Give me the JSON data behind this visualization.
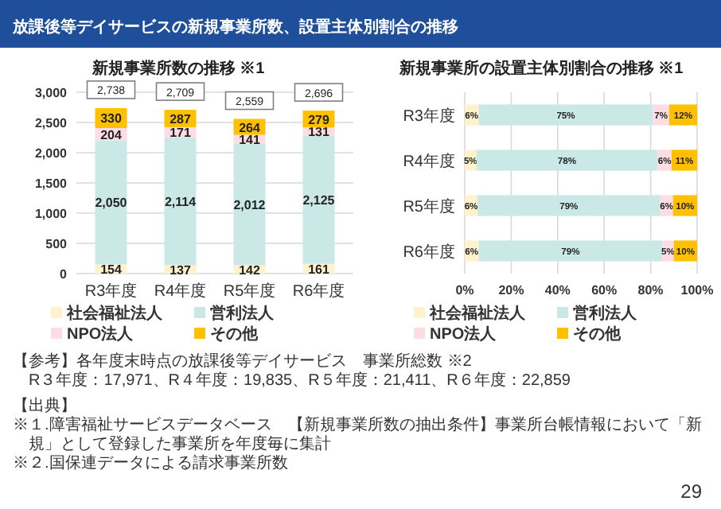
{
  "chart_data": [
    {
      "type": "bar",
      "stacked": true,
      "title": "新規事業所数の推移 ※1",
      "categories": [
        "R3年度",
        "R4年度",
        "R5年度",
        "R6年度"
      ],
      "series": [
        {
          "name": "社会福祉法人",
          "color": "#fff2cc",
          "values": [
            154,
            137,
            142,
            161
          ],
          "value_labels": [
            "154",
            "137",
            "142",
            "161"
          ]
        },
        {
          "name": "営利法人",
          "color": "#c9e8e6",
          "values": [
            2050,
            2114,
            2012,
            2125
          ],
          "value_labels": [
            "2,050",
            "2,114",
            "2,012",
            "2,125"
          ]
        },
        {
          "name": "NPO法人",
          "color": "#fbdde3",
          "values": [
            204,
            171,
            141,
            131
          ],
          "value_labels": [
            "204",
            "171",
            "141",
            "131"
          ]
        },
        {
          "name": "その他",
          "color": "#ffc000",
          "values": [
            330,
            287,
            264,
            279
          ],
          "value_labels": [
            "330",
            "287",
            "264",
            "279"
          ]
        }
      ],
      "totals": [
        "2,738",
        "2,709",
        "2,559",
        "2,696"
      ],
      "ylim": [
        0,
        3000
      ],
      "yticks": [
        0,
        500,
        {
          "value": 1000,
          "label": "1,000"
        },
        {
          "value": 1500,
          "label": "1,500"
        },
        {
          "value": 2000,
          "label": "2,000"
        },
        {
          "value": 2500,
          "label": "2,500"
        },
        {
          "value": 3000,
          "label": "3,000"
        }
      ],
      "grid": "y",
      "legend": "bottom",
      "annotations": [
        "放課後等デイサービスの新規事業所数、設置主体別割合の推移",
        "【参考】各年度末時点の放課後等デイサービス　事業所総数 ※2",
        "R３年度：17,971、R４年度：19,835、R５年度：21,411、R６年度：22,859",
        "【出典】",
        "※１.障害福祉サービスデータベース　【新規事業所数の抽出条件】事業所台帳情報において「新規」として登録した事業所を年度毎に集計",
        "※２.国保連データによる請求事業所数",
        "29"
      ]
    },
    {
      "type": "bar",
      "stacked": true,
      "orientation": "horizontal",
      "title": "新規事業所の設置主体別割合の推移 ※1",
      "categories": [
        "R3年度",
        "R4年度",
        "R5年度",
        "R6年度"
      ],
      "series": [
        {
          "name": "社会福祉法人",
          "color": "#fff2cc",
          "values": [
            6,
            5,
            5.5,
            6
          ],
          "value_labels": [
            "6%",
            "5%",
            "6%",
            "6%"
          ]
        },
        {
          "name": "営利法人",
          "color": "#c9e8e6",
          "values": [
            75,
            78,
            78.6,
            79
          ],
          "value_labels": [
            "75%",
            "78%",
            "79%",
            "79%"
          ]
        },
        {
          "name": "NPO法人",
          "color": "#fbdde3",
          "values": [
            7,
            6,
            5.5,
            5
          ],
          "value_labels": [
            "7%",
            "6%",
            "6%",
            "5%"
          ]
        },
        {
          "name": "その他",
          "color": "#ffc000",
          "values": [
            12,
            11,
            10.4,
            10
          ],
          "value_labels": [
            "12%",
            "11%",
            "10%",
            "10%"
          ]
        }
      ],
      "xlim": [
        0,
        100
      ],
      "xticks": [
        {
          "value": 0,
          "label": "0%"
        },
        {
          "value": 20,
          "label": "20%"
        },
        {
          "value": 40,
          "label": "40%"
        },
        {
          "value": 60,
          "label": "60%"
        },
        {
          "value": 80,
          "label": "80%"
        },
        {
          "value": 100,
          "label": "100%"
        }
      ],
      "grid": "x",
      "legend": "bottom"
    }
  ]
}
